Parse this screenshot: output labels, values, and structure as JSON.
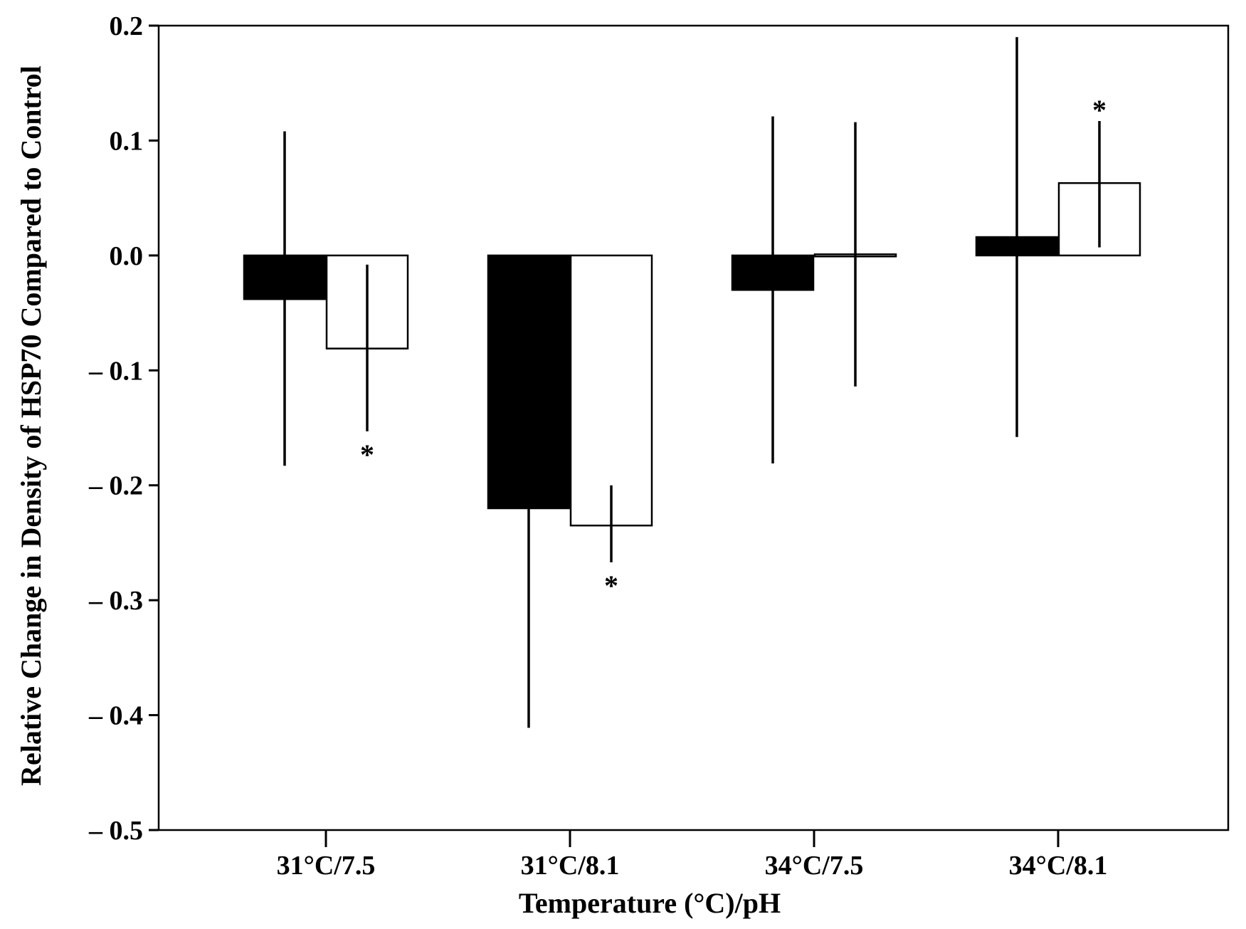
{
  "chart_data": {
    "type": "bar",
    "title": "",
    "xlabel": "Temperature (°C)/pH",
    "ylabel": "Relative Change in Density of HSP70 Compared to Control",
    "ylim": [
      -0.5,
      0.2
    ],
    "yticks": [
      0.2,
      0.1,
      0.0,
      -0.1,
      -0.2,
      -0.3,
      -0.4,
      -0.5
    ],
    "ytick_labels": [
      "0.2",
      "0.1",
      "0.0",
      "– 0.1",
      "– 0.2",
      "– 0.3",
      "– 0.4",
      "– 0.5"
    ],
    "categories": [
      "31°C/7.5",
      "31°C/8.1",
      "34°C/7.5",
      "34°C/8.1"
    ],
    "grid": false,
    "legend": "none",
    "significance_marker": "*",
    "series": [
      {
        "fill": "#000000",
        "values": [
          -0.038,
          -0.22,
          -0.03,
          0.016
        ],
        "error_low": [
          -0.183,
          -0.411,
          -0.181,
          -0.158
        ],
        "error_high": [
          0.108,
          -0.22,
          0.121,
          0.19
        ],
        "significant": [
          false,
          false,
          false,
          false
        ]
      },
      {
        "fill": "#ffffff",
        "values": [
          -0.081,
          -0.235,
          0.001,
          0.063
        ],
        "error_low": [
          -0.153,
          -0.267,
          -0.114,
          0.007
        ],
        "error_high": [
          -0.008,
          -0.2,
          0.116,
          0.117
        ],
        "significant": [
          true,
          true,
          false,
          true
        ]
      }
    ]
  }
}
